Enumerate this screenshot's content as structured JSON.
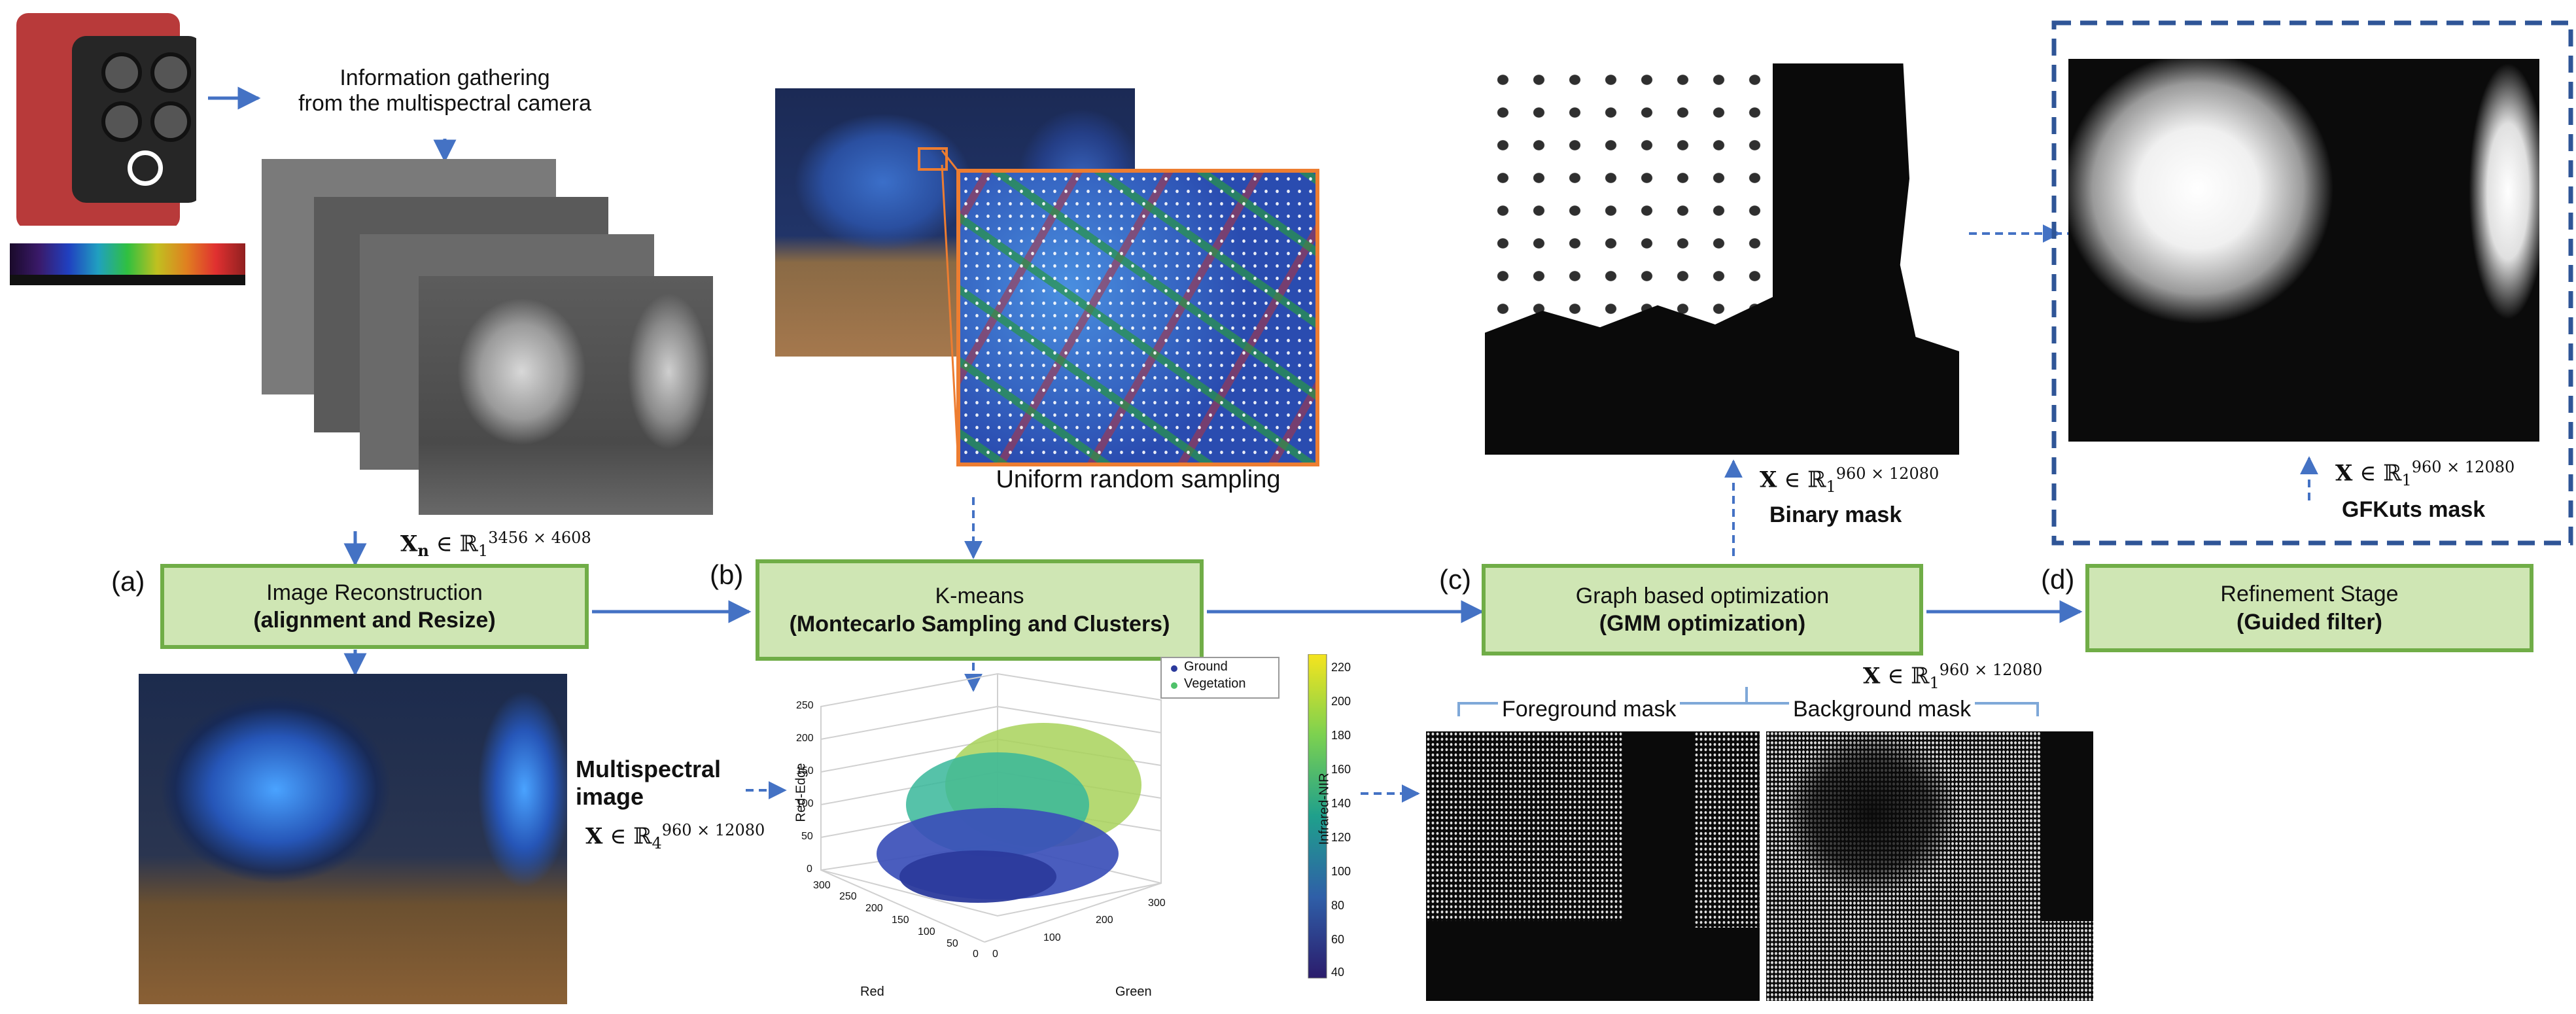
{
  "info_gathering": {
    "line1": "Information gathering",
    "line2": "from the multispectral camera"
  },
  "xn_label": {
    "var": "X",
    "sub": "n",
    "set": "ℝ",
    "set_sub": "1",
    "dims": "3456 × 4608"
  },
  "stages": [
    {
      "tag": "(a)",
      "title": "Image Reconstruction",
      "subtitle": "(alignment and Resize)"
    },
    {
      "tag": "(b)",
      "title": "K-means",
      "subtitle": "(Montecarlo Sampling and Clusters)"
    },
    {
      "tag": "(c)",
      "title": "Graph based optimization",
      "subtitle": "(GMM optimization)"
    },
    {
      "tag": "(d)",
      "title": "Refinement Stage",
      "subtitle": "(Guided filter)"
    }
  ],
  "uniform_sampling": "Uniform random sampling",
  "multispectral": {
    "line1": "Multispectral",
    "line2": "image",
    "var": "X",
    "set": "ℝ",
    "set_sub": "4",
    "dims": "960 × 12080"
  },
  "binary_mask": {
    "var": "X",
    "set": "ℝ",
    "set_sub": "1",
    "dims": "960 × 12080",
    "caption": "Binary mask"
  },
  "gfkuts_mask": {
    "var": "X",
    "set": "ℝ",
    "set_sub": "1",
    "dims": "960 × 12080",
    "caption": "GFKuts mask"
  },
  "gmm_output": {
    "var": "X",
    "set": "ℝ",
    "set_sub": "1",
    "dims": "960 × 12080"
  },
  "masks": {
    "foreground": "Foreground mask",
    "background": "Background mask"
  },
  "scatter": {
    "legend": [
      "Ground",
      "Vegetation"
    ],
    "legend_colors": [
      "#2b3a9c",
      "#4fc16a"
    ],
    "zlabel": "Red-Edge",
    "xlabel": "Red",
    "ylabel": "Green",
    "colorbar_label": "Infrared-NIR",
    "z_ticks": [
      "250",
      "200",
      "150",
      "100",
      "50",
      "0"
    ],
    "x_ticks": [
      "300",
      "250",
      "200",
      "150",
      "100",
      "50",
      "0"
    ],
    "y_ticks": [
      "0",
      "100",
      "200",
      "300"
    ],
    "colorbar_ticks": [
      "220",
      "200",
      "180",
      "160",
      "140",
      "120",
      "100",
      "80",
      "60",
      "40"
    ]
  },
  "colors": {
    "arrow": "#4472c4",
    "box_fill": "#cfe6b4",
    "box_border": "#70ad47",
    "highlight": "#ed7d31",
    "dashed_frame": "#2f5597"
  }
}
